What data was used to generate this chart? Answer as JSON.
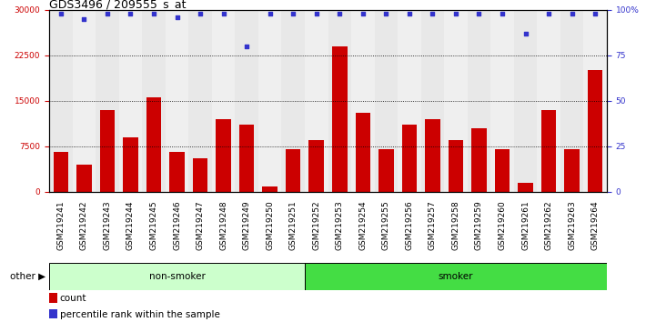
{
  "title": "GDS3496 / 209555_s_at",
  "samples": [
    "GSM219241",
    "GSM219242",
    "GSM219243",
    "GSM219244",
    "GSM219245",
    "GSM219246",
    "GSM219247",
    "GSM219248",
    "GSM219249",
    "GSM219250",
    "GSM219251",
    "GSM219252",
    "GSM219253",
    "GSM219254",
    "GSM219255",
    "GSM219256",
    "GSM219257",
    "GSM219258",
    "GSM219259",
    "GSM219260",
    "GSM219261",
    "GSM219262",
    "GSM219263",
    "GSM219264"
  ],
  "counts": [
    6500,
    4500,
    13500,
    9000,
    15500,
    6500,
    5500,
    12000,
    11000,
    900,
    7000,
    8500,
    24000,
    13000,
    7000,
    11000,
    12000,
    8500,
    10500,
    7000,
    1500,
    13500,
    7000,
    20000
  ],
  "percentiles": [
    98,
    95,
    98,
    98,
    98,
    96,
    98,
    98,
    80,
    98,
    98,
    98,
    98,
    98,
    98,
    98,
    98,
    98,
    98,
    98,
    87,
    98,
    98,
    98
  ],
  "groups": [
    "non-smoker",
    "non-smoker",
    "non-smoker",
    "non-smoker",
    "non-smoker",
    "non-smoker",
    "non-smoker",
    "non-smoker",
    "non-smoker",
    "non-smoker",
    "non-smoker",
    "smoker",
    "smoker",
    "smoker",
    "smoker",
    "smoker",
    "smoker",
    "smoker",
    "smoker",
    "smoker",
    "smoker",
    "smoker",
    "smoker",
    "smoker"
  ],
  "bar_color": "#cc0000",
  "dot_color": "#3333cc",
  "nonsmoker_color": "#ccffcc",
  "smoker_color": "#44dd44",
  "ylim_left": [
    0,
    30000
  ],
  "ylim_right": [
    0,
    100
  ],
  "yticks_left": [
    0,
    7500,
    15000,
    22500,
    30000
  ],
  "yticks_right": [
    0,
    25,
    50,
    75,
    100
  ],
  "title_fontsize": 9,
  "tick_fontsize": 6.5,
  "bar_width": 0.65,
  "ns_count": 11,
  "other_label": "other"
}
